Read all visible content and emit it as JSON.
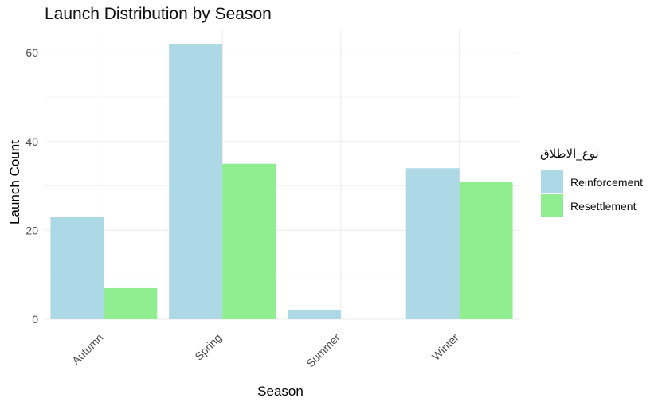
{
  "chart_data": {
    "type": "bar",
    "title": "Launch Distribution by Season",
    "xlabel": "Season",
    "ylabel": "Launch Count",
    "categories": [
      "Autumn",
      "Spring",
      "Summer",
      "Winter"
    ],
    "series": [
      {
        "name": "Reinforcement",
        "color": "#add8e6",
        "values": [
          23,
          62,
          2,
          34
        ]
      },
      {
        "name": "Resettlement",
        "color": "#90ee90",
        "values": [
          7,
          35,
          0,
          31
        ]
      }
    ],
    "ylim": [
      0,
      65
    ],
    "yticks": [
      0,
      20,
      40,
      60
    ],
    "grid": true,
    "legend_title": "نوع_الاطلاق",
    "legend_position": "right",
    "xtick_rotation_deg": 45
  }
}
